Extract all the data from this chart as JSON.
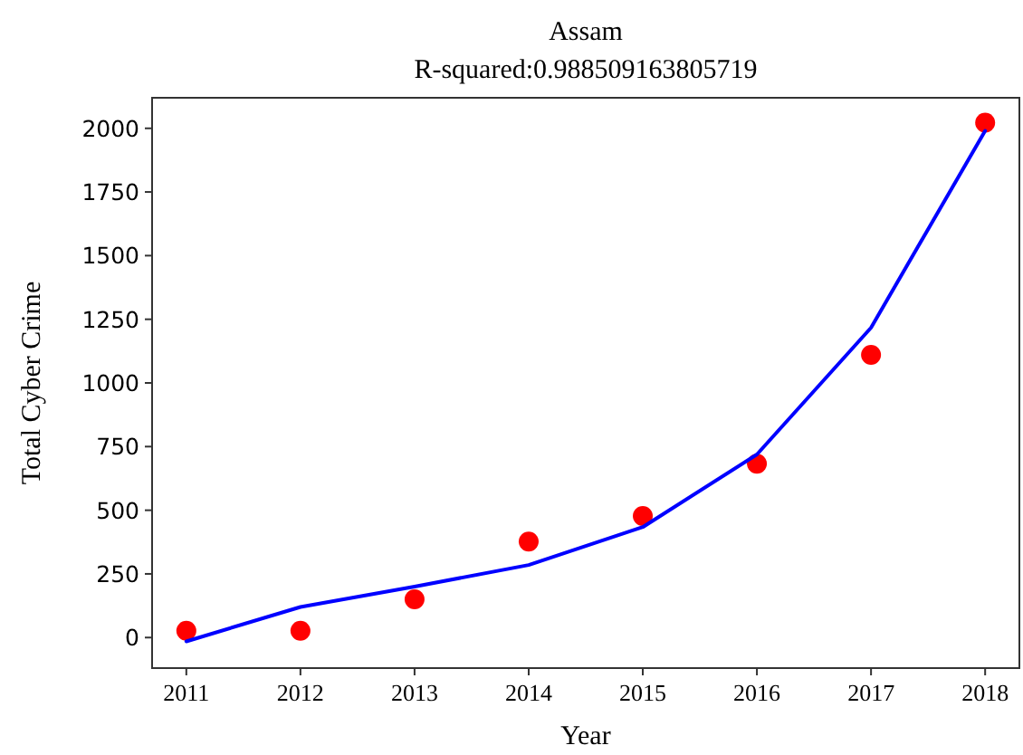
{
  "chart_data": {
    "type": "scatter",
    "title": "Assam",
    "subtitle": "R-squared:0.988509163805719",
    "xlabel": "Year",
    "ylabel": "Total Cyber Crime",
    "x": [
      2011,
      2012,
      2013,
      2014,
      2015,
      2016,
      2017,
      2018
    ],
    "series": [
      {
        "color": "#ff0000",
        "marker": "circle",
        "values": [
          27,
          27,
          150,
          377,
          477,
          683,
          1110,
          2022
        ]
      },
      {
        "type": "line",
        "color": "#0000ff",
        "marker": "none",
        "line_style": "solid",
        "values": [
          -15,
          120,
          200,
          285,
          434,
          719,
          1217,
          1990
        ]
      }
    ],
    "xlim": [
      2010.7,
      2018.3
    ],
    "xticks": [
      2011,
      2012,
      2013,
      2014,
      2015,
      2016,
      2017,
      2018
    ],
    "ylim": [
      -120,
      2120
    ],
    "yticks": [
      0,
      250,
      500,
      750,
      1000,
      1250,
      1500,
      1750,
      2000
    ],
    "grid": false
  }
}
